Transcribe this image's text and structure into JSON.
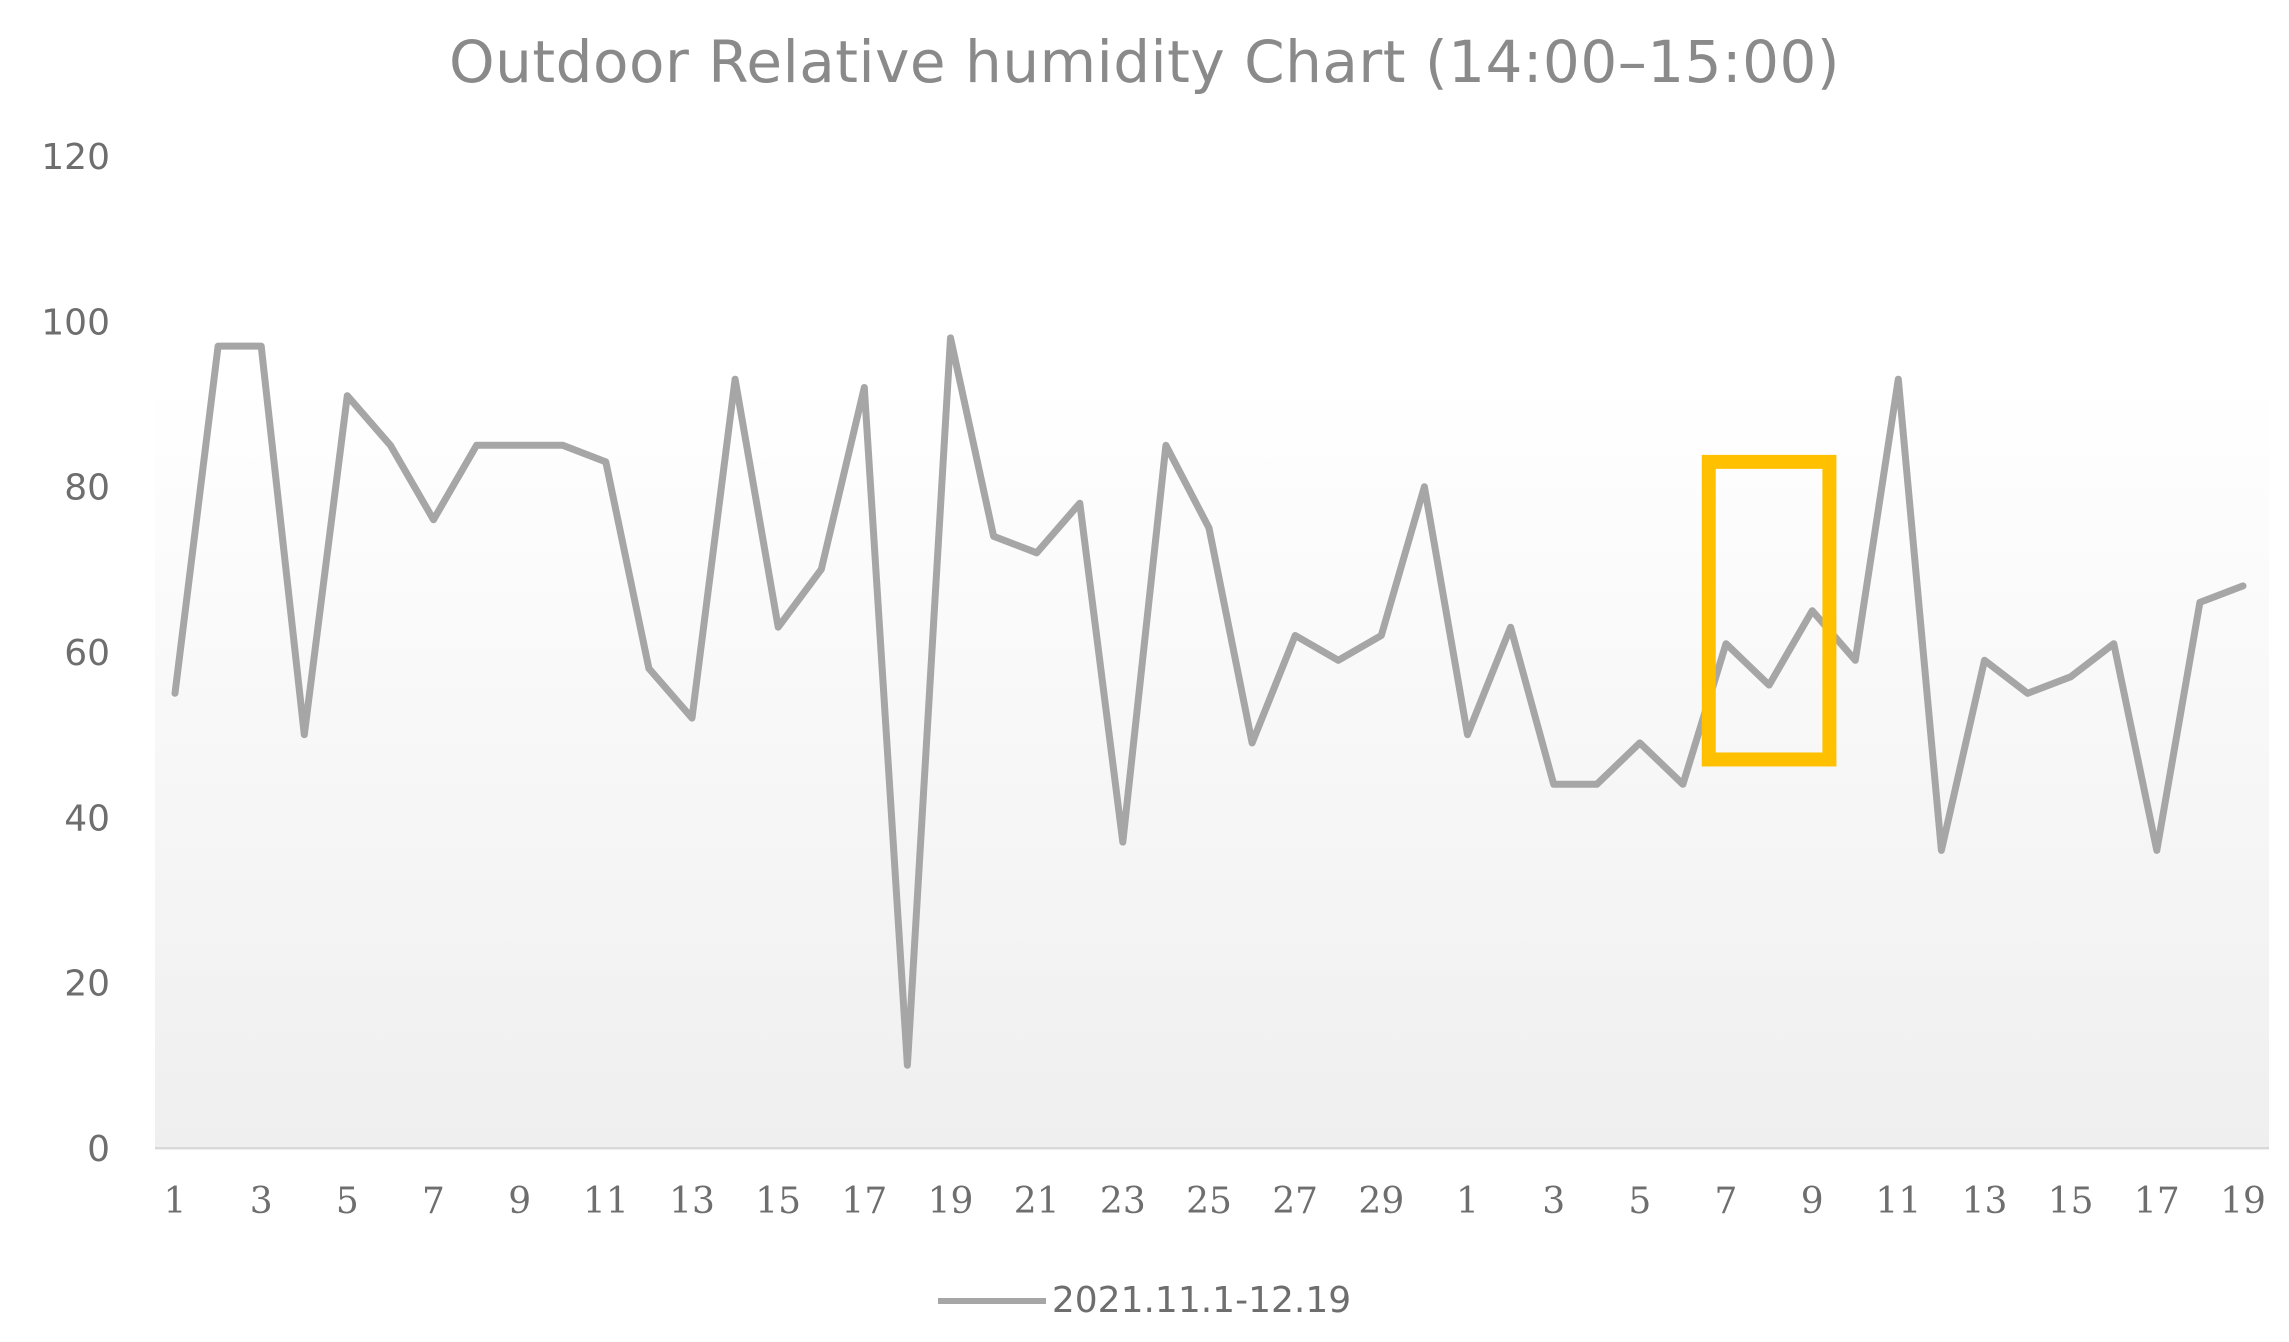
{
  "chart_data": {
    "type": "line",
    "title": "Outdoor Relative humidity Chart (14:00–15:00)",
    "xlabel": "",
    "ylabel": "",
    "ylim": [
      0,
      120
    ],
    "yticks": [
      "0",
      "20",
      "40",
      "60",
      "80",
      "100",
      "120"
    ],
    "x": [
      "1",
      "2",
      "3",
      "4",
      "5",
      "6",
      "7",
      "8",
      "9",
      "10",
      "11",
      "12",
      "13",
      "14",
      "15",
      "16",
      "17",
      "18",
      "19",
      "20",
      "21",
      "22",
      "23",
      "24",
      "25",
      "26",
      "27",
      "28",
      "29",
      "30",
      "1",
      "2",
      "3",
      "4",
      "5",
      "6",
      "7",
      "8",
      "9",
      "10",
      "11",
      "12",
      "13",
      "14",
      "15",
      "16",
      "17",
      "18",
      "19"
    ],
    "xtick_labels_shown": [
      "1",
      "3",
      "5",
      "7",
      "9",
      "11",
      "13",
      "15",
      "17",
      "19",
      "21",
      "23",
      "25",
      "27",
      "29",
      "1",
      "3",
      "5",
      "7",
      "9",
      "11",
      "13",
      "15",
      "17",
      "19"
    ],
    "grid": false,
    "legend_position": "bottom-center",
    "line_color": "#a6a6a6",
    "highlight_color": "#ffc000",
    "highlight_range": {
      "from_index": 36,
      "to_index": 38,
      "y_from": 47,
      "y_to": 83
    },
    "series": [
      {
        "name": "2021.11.1-12.19",
        "values": [
          55,
          97,
          97,
          50,
          91,
          85,
          76,
          85,
          85,
          85,
          83,
          58,
          52,
          93,
          63,
          70,
          92,
          10,
          98,
          74,
          72,
          78,
          37,
          85,
          75,
          49,
          62,
          59,
          62,
          80,
          50,
          63,
          44,
          44,
          49,
          44,
          61,
          56,
          65,
          59,
          93,
          36,
          59,
          55,
          57,
          61,
          36,
          66,
          68
        ]
      }
    ]
  }
}
